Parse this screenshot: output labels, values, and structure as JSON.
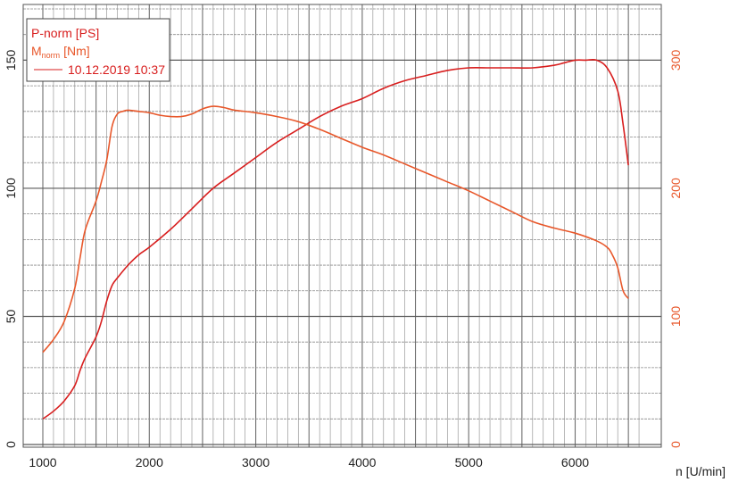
{
  "chart_data": {
    "type": "line",
    "title": "",
    "xlabel": "n [U/min]",
    "xlim": [
      1000,
      6500
    ],
    "x_ticks": [
      "1000",
      "2000",
      "3000",
      "4000",
      "5000",
      "6000"
    ],
    "y_left": {
      "label": "",
      "lim": [
        0,
        170
      ],
      "ticks": [
        "0",
        "50",
        "100",
        "150"
      ],
      "tick_values": [
        0,
        50,
        100,
        150
      ]
    },
    "y_right": {
      "label": "",
      "lim": [
        0,
        340
      ],
      "ticks": [
        "0",
        "100",
        "200",
        "300"
      ],
      "tick_values": [
        0,
        100,
        200,
        300
      ]
    },
    "grid": true,
    "legend": {
      "placement": "top-left",
      "entries": [
        {
          "text": "P-norm [PS]",
          "color": "#d81e1e"
        },
        {
          "main": "M",
          "sub": "norm",
          "rest": " [Nm]",
          "color": "#e8572a"
        },
        {
          "text": "10.12.2019 10:37",
          "color": "#d81e1e"
        }
      ]
    },
    "series": [
      {
        "axis": "left",
        "color": "#d81e1e",
        "x": [
          1000,
          1100,
          1200,
          1300,
          1350,
          1400,
          1500,
          1550,
          1600,
          1650,
          1700,
          1800,
          1900,
          2000,
          2200,
          2400,
          2600,
          2800,
          3000,
          3200,
          3400,
          3600,
          3800,
          4000,
          4200,
          4400,
          4600,
          4800,
          5000,
          5200,
          5400,
          5600,
          5800,
          5900,
          6000,
          6100,
          6200,
          6300,
          6400,
          6450,
          6500
        ],
        "values": [
          10,
          13,
          17,
          23,
          29,
          34,
          42,
          48,
          56,
          62,
          65,
          70,
          74,
          77,
          84,
          92,
          100,
          106,
          112,
          118,
          123,
          128,
          132,
          135,
          139,
          142,
          144,
          146,
          147,
          147,
          147,
          147,
          148,
          149,
          150,
          150,
          150,
          147,
          138,
          125,
          109
        ]
      },
      {
        "axis": "right",
        "color": "#e8572a",
        "x": [
          1000,
          1100,
          1200,
          1300,
          1350,
          1400,
          1500,
          1550,
          1600,
          1650,
          1700,
          1750,
          1800,
          1900,
          2000,
          2100,
          2200,
          2300,
          2400,
          2500,
          2600,
          2700,
          2800,
          3000,
          3200,
          3400,
          3600,
          3800,
          4000,
          4200,
          4400,
          4600,
          4800,
          5000,
          5200,
          5400,
          5600,
          5800,
          6000,
          6200,
          6300,
          6350,
          6400,
          6450,
          6500
        ],
        "values": [
          72,
          82,
          96,
          122,
          146,
          168,
          190,
          205,
          222,
          248,
          258,
          260,
          261,
          260,
          259,
          257,
          256,
          256,
          258,
          262,
          264,
          263,
          261,
          259,
          256,
          252,
          246,
          239,
          232,
          226,
          219,
          212,
          205,
          198,
          190,
          182,
          174,
          169,
          165,
          159,
          154,
          148,
          138,
          120,
          114
        ]
      }
    ]
  }
}
